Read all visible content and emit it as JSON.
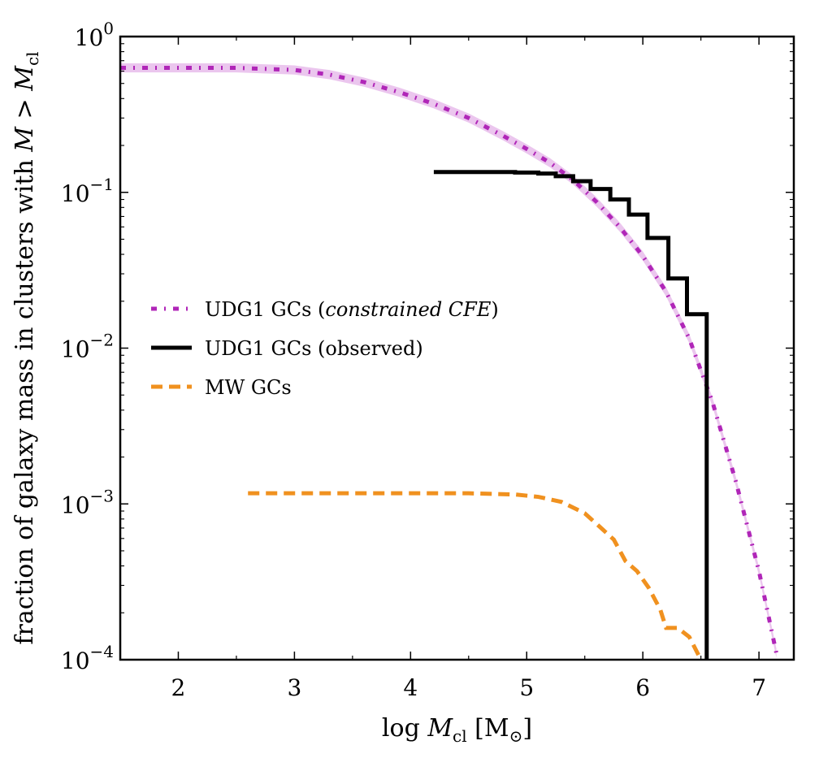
{
  "chart_data": {
    "type": "line",
    "title": "",
    "xlabel": "log M_cl [M_⊙]",
    "ylabel": "fraction of galaxy mass in clusters with M > M_cl",
    "xlim": [
      1.5,
      7.3
    ],
    "ylim": [
      0.0001,
      1
    ],
    "yscale": "log",
    "grid": false,
    "legend_position": "center-left",
    "x_ticks": [
      "2",
      "3",
      "4",
      "5",
      "6",
      "7"
    ],
    "y_ticks": [
      {
        "base": "10",
        "exp": "0"
      },
      {
        "base": "10",
        "exp": "−1"
      },
      {
        "base": "10",
        "exp": "−2"
      },
      {
        "base": "10",
        "exp": "−3"
      },
      {
        "base": "10",
        "exp": "−4"
      }
    ],
    "legend": [
      {
        "label": "UDG1 GCs (",
        "label_italic": "constrained CFE",
        "label_end": ")"
      },
      {
        "label": "UDG1 GCs (observed)",
        "label_italic": "",
        "label_end": ""
      },
      {
        "label": "MW GCs",
        "label_italic": "",
        "label_end": ""
      }
    ],
    "series": [
      {
        "style": "dashdot",
        "color": "#b026b8",
        "band_color": "#e6b8ea",
        "x": [
          1.5,
          2.0,
          2.5,
          3.0,
          3.3,
          3.6,
          3.9,
          4.2,
          4.5,
          4.8,
          5.0,
          5.2,
          5.4,
          5.6,
          5.8,
          6.0,
          6.2,
          6.4,
          6.6,
          6.8,
          7.0,
          7.15
        ],
        "y": [
          0.63,
          0.63,
          0.63,
          0.61,
          0.57,
          0.51,
          0.44,
          0.37,
          0.3,
          0.23,
          0.19,
          0.155,
          0.12,
          0.087,
          0.06,
          0.039,
          0.023,
          0.0115,
          0.0045,
          0.0014,
          0.00037,
          0.00011
        ]
      },
      {
        "style": "step",
        "color": "#000000",
        "x": [
          4.2,
          4.9,
          5.1,
          5.25,
          5.4,
          5.55,
          5.72,
          5.88,
          6.04,
          6.22,
          6.38,
          6.55,
          6.55
        ],
        "y": [
          0.135,
          0.134,
          0.132,
          0.127,
          0.118,
          0.105,
          0.09,
          0.072,
          0.051,
          0.028,
          0.0165,
          0.0165,
          0.0001
        ]
      },
      {
        "style": "dashed",
        "color": "#f0911f",
        "x": [
          2.6,
          3.5,
          4.5,
          4.9,
          5.1,
          5.3,
          5.5,
          5.65,
          5.75,
          5.85,
          5.95,
          6.05,
          6.15,
          6.2,
          6.3,
          6.4,
          6.5
        ],
        "y": [
          0.00117,
          0.00117,
          0.00117,
          0.00115,
          0.00111,
          0.00103,
          0.00087,
          0.00069,
          0.00059,
          0.00043,
          0.00037,
          0.00029,
          0.00021,
          0.00016,
          0.00016,
          0.00014,
          0.0001
        ]
      }
    ]
  }
}
